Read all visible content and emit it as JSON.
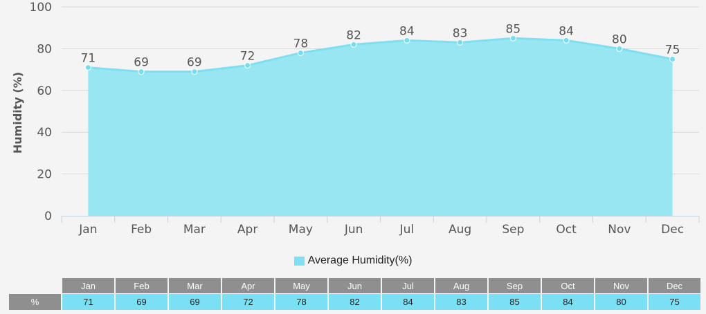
{
  "chart_data": {
    "type": "area",
    "categories": [
      "Jan",
      "Feb",
      "Mar",
      "Apr",
      "May",
      "Jun",
      "Jul",
      "Aug",
      "Sep",
      "Oct",
      "Nov",
      "Dec"
    ],
    "series": [
      {
        "name": "Average Humidity(%)",
        "values": [
          71,
          69,
          69,
          72,
          78,
          82,
          84,
          83,
          85,
          84,
          80,
          75
        ]
      }
    ],
    "ylabel": "Humidity (%)",
    "ylim": [
      0,
      100
    ],
    "yticks": [
      0,
      20,
      40,
      60,
      80,
      100
    ],
    "grid": true,
    "legend_position": "bottom-center",
    "colors": {
      "fill": "#98e6f2",
      "line": "#7fdff0",
      "marker": "#76dcef",
      "grid": "#d9d9d9",
      "axis": "#c7d1e0"
    }
  },
  "legend": {
    "label": "Average Humidity(%)",
    "color": "#7fe0f2"
  },
  "table": {
    "row_label": "%",
    "months": [
      "Jan",
      "Feb",
      "Mar",
      "Apr",
      "May",
      "Jun",
      "Jul",
      "Aug",
      "Sep",
      "Oct",
      "Nov",
      "Dec"
    ],
    "values": [
      "71",
      "69",
      "69",
      "72",
      "78",
      "82",
      "84",
      "83",
      "85",
      "84",
      "80",
      "75"
    ]
  }
}
